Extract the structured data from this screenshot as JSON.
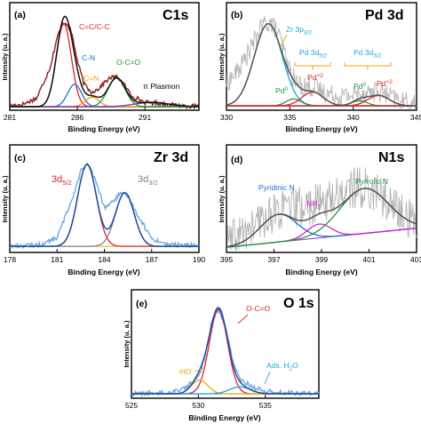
{
  "chart_data": [
    {
      "id": "a",
      "type": "line",
      "panel_letter": "(a)",
      "title": "C1s",
      "xlabel": "Binding Energy (eV)",
      "ylabel": "Intensity (u. a.)",
      "xlim": [
        281,
        295
      ],
      "ylim": [
        0,
        1.1
      ],
      "xticks": [
        281,
        286,
        291
      ],
      "xtick_labels": [
        "281",
        "286",
        "291"
      ],
      "background": 0.02,
      "x": [
        281,
        282,
        283,
        284,
        284.5,
        285,
        285.3,
        285.6,
        286,
        286.5,
        287,
        287.5,
        288,
        288.5,
        289,
        289.5,
        290,
        291,
        292,
        293,
        294,
        295
      ],
      "y": [
        0.03,
        0.05,
        0.12,
        0.48,
        0.82,
        1.0,
        0.97,
        0.86,
        0.55,
        0.28,
        0.19,
        0.22,
        0.3,
        0.36,
        0.36,
        0.27,
        0.15,
        0.07,
        0.06,
        0.04,
        0.03,
        0.02
      ],
      "components": [
        {
          "label": "C=C/C-C",
          "color": "#e3222a",
          "peaks": [
            {
              "center": 285.0,
              "height": 0.96,
              "fwhm": 1.3
            }
          ]
        },
        {
          "label": "C-N",
          "color": "#1f6fd1",
          "peaks": [
            {
              "center": 285.8,
              "height": 0.26,
              "fwhm": 1.2
            }
          ]
        },
        {
          "label": "C=N",
          "color": "#f0a30a",
          "peaks": [
            {
              "center": 287.1,
              "height": 0.11,
              "fwhm": 1.2
            }
          ]
        },
        {
          "label": "O-C=O",
          "color": "#1a9a3c",
          "peaks": [
            {
              "center": 288.9,
              "height": 0.33,
              "fwhm": 1.5
            }
          ]
        },
        {
          "label": "π Plasmon",
          "color": "#8a2bbd",
          "peaks": [
            {
              "center": 291.5,
              "height": 0.05,
              "fwhm": 3.0
            }
          ]
        }
      ],
      "envelope_color": "#111111",
      "data_color": "#8c1d1d"
    },
    {
      "id": "b",
      "type": "line",
      "panel_letter": "(b)",
      "title": "Pd 3d",
      "xlabel": "Binding Energy (eV)",
      "ylabel": "Intensity (u. a.)",
      "xlim": [
        330,
        345
      ],
      "ylim": [
        0,
        1.1
      ],
      "xticks": [
        330,
        335,
        340,
        345
      ],
      "xtick_labels": [
        "330",
        "335",
        "340",
        "345"
      ],
      "background": 0.03,
      "x": [
        330,
        331,
        332,
        332.5,
        333,
        333.4,
        334,
        334.5,
        335,
        335.5,
        336,
        337,
        338,
        339,
        340,
        341,
        342,
        343,
        344,
        345
      ],
      "y": [
        0.3,
        0.45,
        0.72,
        0.87,
        0.98,
        1.0,
        0.9,
        0.68,
        0.43,
        0.3,
        0.26,
        0.24,
        0.17,
        0.14,
        0.16,
        0.19,
        0.2,
        0.13,
        0.07,
        0.05
      ],
      "components": [
        {
          "label": "Zr 3p3/2",
          "color": "#1aa6e0",
          "peaks": [
            {
              "center": 333.3,
              "height": 0.95,
              "fwhm": 2.6
            }
          ]
        },
        {
          "label": "Pd0",
          "color": "#1a9a3c",
          "peaks": [
            {
              "center": 335.3,
              "height": 0.08,
              "fwhm": 1.4
            },
            {
              "center": 340.5,
              "height": 0.06,
              "fwhm": 1.4
            }
          ]
        },
        {
          "label": "Pd+2",
          "color": "#e3222a",
          "peaks": [
            {
              "center": 336.8,
              "height": 0.16,
              "fwhm": 2.0
            },
            {
              "center": 342.0,
              "height": 0.12,
              "fwhm": 2.0
            }
          ]
        }
      ],
      "envelope_color": "#555555",
      "data_color": "#b4b4b4"
    },
    {
      "id": "c",
      "type": "line",
      "panel_letter": "(c)",
      "title": "Zr 3d",
      "xlabel": "Binding Energy (eV)",
      "ylabel": "Intensity (u. a.)",
      "xlim": [
        178,
        190
      ],
      "ylim": [
        0,
        1.1
      ],
      "xticks": [
        178,
        181,
        184,
        187,
        190
      ],
      "xtick_labels": [
        "178",
        "181",
        "184",
        "187",
        "190"
      ],
      "background": 0.05,
      "x": [
        178,
        180,
        181,
        182,
        182.5,
        183,
        183.5,
        184,
        184.5,
        185,
        185.5,
        186,
        187,
        188,
        190
      ],
      "y": [
        0.05,
        0.07,
        0.15,
        0.62,
        0.92,
        1.0,
        0.78,
        0.5,
        0.56,
        0.66,
        0.63,
        0.45,
        0.14,
        0.07,
        0.06
      ],
      "components": [
        {
          "label": "3d5/2",
          "color": "#e3222a",
          "peaks": [
            {
              "center": 182.9,
              "height": 0.95,
              "fwhm": 1.4
            }
          ]
        },
        {
          "label": "3d3/2",
          "color": "#808080",
          "peaks": [
            {
              "center": 185.3,
              "height": 0.62,
              "fwhm": 1.4
            }
          ]
        }
      ],
      "envelope_color": "#1f4fa0",
      "data_color": "#6aa7e6"
    },
    {
      "id": "d",
      "type": "line",
      "panel_letter": "(d)",
      "title": "N1s",
      "xlabel": "Binding Energy (eV)",
      "ylabel": "Intensity (u. a.)",
      "xlim": [
        395,
        403
      ],
      "ylim": [
        0,
        1.1
      ],
      "xticks": [
        395,
        397,
        399,
        401,
        403
      ],
      "xtick_labels": [
        "395",
        "397",
        "399",
        "401",
        "403"
      ],
      "background_range": [
        0.04,
        0.26
      ],
      "x": [
        395,
        396,
        397,
        398,
        398.5,
        399,
        399.5,
        400,
        400.5,
        401,
        401.5,
        402,
        403
      ],
      "y": [
        0.08,
        0.25,
        0.45,
        0.5,
        0.52,
        0.55,
        0.62,
        0.7,
        0.73,
        0.72,
        0.65,
        0.5,
        0.3
      ],
      "components": [
        {
          "label": "Pyridinic N",
          "color": "#1f6fd1",
          "peaks": [
            {
              "center": 397.2,
              "height": 0.32,
              "fwhm": 1.8
            }
          ]
        },
        {
          "label": "NH2",
          "color": "#d81bd8",
          "peaks": [
            {
              "center": 398.9,
              "height": 0.16,
              "fwhm": 1.2
            }
          ]
        },
        {
          "label": "Pyrrolic N",
          "color": "#1a9a3c",
          "peaks": [
            {
              "center": 400.8,
              "height": 0.52,
              "fwhm": 2.4
            }
          ]
        }
      ],
      "envelope_color": "#555555",
      "data_color": "#b4b4b4"
    },
    {
      "id": "e",
      "type": "line",
      "panel_letter": "(e)",
      "title": "O 1s",
      "xlabel": "Binding Energy (eV)",
      "ylabel": "Intensity (u. a.)",
      "xlim": [
        525,
        539
      ],
      "ylim": [
        0,
        1.1
      ],
      "xticks": [
        525,
        530,
        535
      ],
      "xtick_labels": [
        "525",
        "530",
        "535"
      ],
      "background": 0.03,
      "x": [
        525,
        528,
        529,
        530,
        530.5,
        531,
        531.5,
        532,
        532.5,
        533,
        534,
        535,
        537,
        539
      ],
      "y": [
        0.03,
        0.05,
        0.1,
        0.22,
        0.46,
        0.86,
        1.0,
        0.82,
        0.46,
        0.22,
        0.11,
        0.06,
        0.04,
        0.03
      ],
      "components": [
        {
          "label": "O-C=O",
          "color": "#e3222a",
          "peaks": [
            {
              "center": 531.5,
              "height": 0.97,
              "fwhm": 1.6
            }
          ]
        },
        {
          "label": "-HO",
          "color": "#f0a30a",
          "peaks": [
            {
              "center": 530.1,
              "height": 0.16,
              "fwhm": 1.4
            }
          ]
        },
        {
          "label": "Ads. H2O",
          "color": "#1aa6e0",
          "peaks": [
            {
              "center": 533.1,
              "height": 0.08,
              "fwhm": 1.8
            }
          ]
        }
      ],
      "envelope_color": "#1f4fa0",
      "data_color": "#6aa7e6"
    }
  ]
}
